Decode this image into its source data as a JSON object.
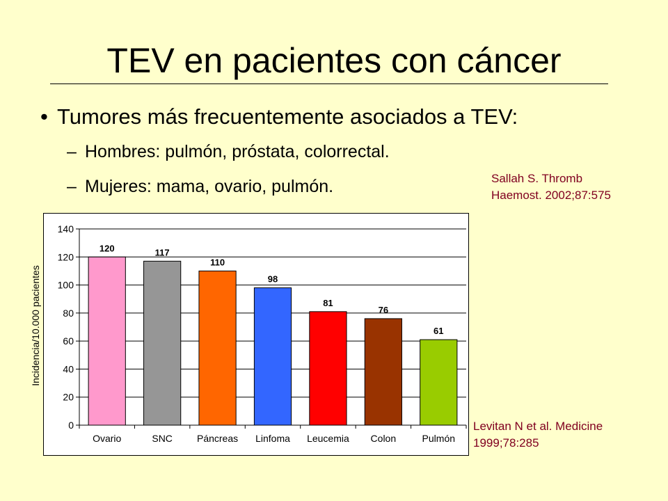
{
  "slide": {
    "title": "TEV en pacientes con cáncer",
    "bullet_symbol": "•",
    "bullet": "Tumores más frecuentemente asociados a TEV:",
    "sub_dash": "–",
    "sub_items": [
      "Hombres: pulmón, próstata, colorrectal.",
      "Mujeres: mama, ovario, pulmón."
    ],
    "reference_1": [
      "Sallah S. Thromb",
      "Haemost. 2002;87:575"
    ],
    "reference_2": [
      "Levitan N et al. Medicine",
      "1999;78:285"
    ],
    "reference_color": "#800020",
    "background_color": "#ffffcc"
  },
  "chart_data": {
    "type": "bar",
    "categories": [
      "Ovario",
      "SNC",
      "Páncreas",
      "Linfoma",
      "Leucemia",
      "Colon",
      "Pulmón"
    ],
    "values": [
      120,
      117,
      110,
      98,
      81,
      76,
      61
    ],
    "colors": [
      "#ff99cc",
      "#969696",
      "#ff6600",
      "#3366ff",
      "#ff0000",
      "#993300",
      "#99cc00"
    ],
    "title": "",
    "xlabel": "",
    "ylabel": "Incidencia/10.000 pacientes",
    "ylim": [
      0,
      140
    ],
    "yticks": [
      0,
      20,
      40,
      60,
      80,
      100,
      120,
      140
    ],
    "grid": true,
    "data_labels": true
  }
}
